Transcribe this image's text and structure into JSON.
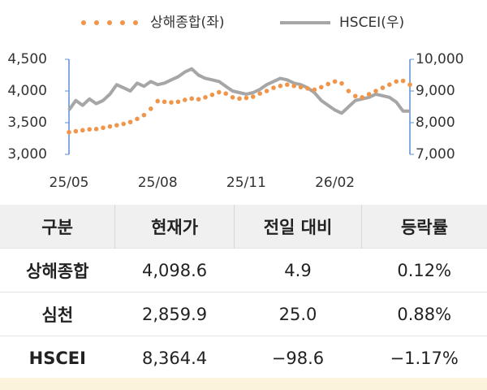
{
  "chart_data": {
    "type": "line",
    "categories": [
      "25/05",
      null,
      null,
      null,
      null,
      null,
      null,
      null,
      null,
      null,
      null,
      null,
      null,
      "25/08",
      null,
      null,
      null,
      null,
      null,
      null,
      null,
      null,
      null,
      null,
      null,
      null,
      "25/11",
      null,
      null,
      null,
      null,
      null,
      null,
      null,
      null,
      null,
      null,
      null,
      null,
      "26/02",
      null,
      null,
      null,
      null,
      null,
      null,
      null,
      null,
      null,
      null,
      null
    ],
    "series": [
      {
        "name": "상해종합(좌)",
        "color": "#f0964b",
        "style": "dots",
        "values": [
          3350,
          3365,
          3380,
          3395,
          3400,
          3420,
          3440,
          3460,
          3480,
          3510,
          3560,
          3620,
          3720,
          3840,
          3830,
          3820,
          3830,
          3860,
          3880,
          3870,
          3900,
          3940,
          3980,
          3960,
          3900,
          3880,
          3890,
          3910,
          3960,
          4000,
          4050,
          4080,
          4100,
          4080,
          4060,
          4040,
          4020,
          4060,
          4110,
          4150,
          4120,
          4000,
          3920,
          3900,
          3950,
          4000,
          4050,
          4100,
          4150,
          4160,
          4100
        ]
      },
      {
        "name": "HSCEI(우)",
        "color": "#a6a6a6",
        "style": "line",
        "axis": "y2",
        "values": [
          8400,
          8700,
          8550,
          8750,
          8600,
          8700,
          8900,
          9200,
          9100,
          9000,
          9250,
          9150,
          9300,
          9200,
          9250,
          9350,
          9450,
          9600,
          9700,
          9500,
          9400,
          9350,
          9300,
          9150,
          9000,
          8950,
          8900,
          8950,
          9050,
          9200,
          9300,
          9400,
          9350,
          9250,
          9200,
          9100,
          8950,
          8700,
          8550,
          8400,
          8300,
          8500,
          8700,
          8750,
          8800,
          8900,
          8850,
          8800,
          8650,
          8364,
          8364
        ]
      }
    ],
    "ylim": [
      3000,
      4500
    ],
    "yticks": [
      {
        "value": 3000,
        "label": "3,000"
      },
      {
        "value": 3500,
        "label": "3,500"
      },
      {
        "value": 4000,
        "label": "4,000"
      },
      {
        "value": 4500,
        "label": "4,500"
      }
    ],
    "y2lim": [
      7000,
      10000
    ],
    "y2ticks": [
      {
        "value": 7000,
        "label": "7,000"
      },
      {
        "value": 8000,
        "label": "8,000"
      },
      {
        "value": 9000,
        "label": "9,000"
      },
      {
        "value": 10000,
        "label": "10,000"
      }
    ],
    "axis_color": "#5b8fd6"
  },
  "table": {
    "header": [
      "구분",
      "현재가",
      "전일 대비",
      "등락률"
    ],
    "rows": [
      [
        "상해종합",
        "4,098.6",
        "4.9",
        "0.12%"
      ],
      [
        "심천",
        "2,859.9",
        "25.0",
        "0.88%"
      ],
      [
        "HSCEI",
        "8,364.4",
        "−98.6",
        "−1.17%"
      ]
    ]
  }
}
